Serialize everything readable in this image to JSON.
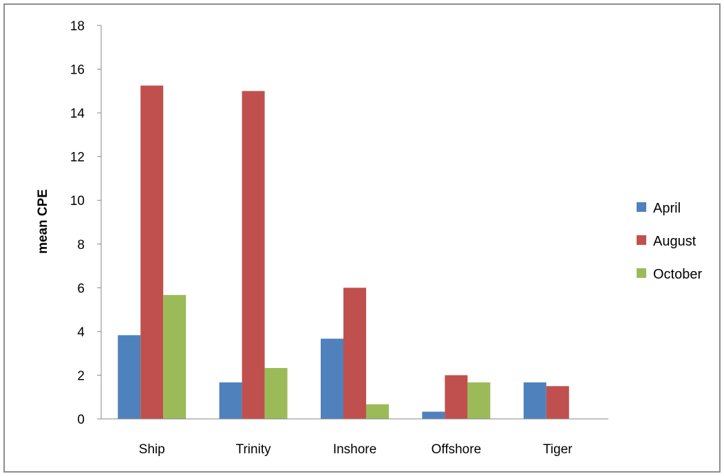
{
  "chart_data": {
    "type": "bar",
    "title": "",
    "xlabel": "",
    "ylabel": "mean CPE",
    "categories": [
      "Ship",
      "Trinity",
      "Inshore",
      "Offshore",
      "Tiger"
    ],
    "series": [
      {
        "name": "April",
        "color": "#4f81bd",
        "values": [
          3.83,
          1.67,
          3.67,
          0.33,
          1.67
        ]
      },
      {
        "name": "August",
        "color": "#c0504d",
        "values": [
          15.25,
          15.0,
          6.0,
          2.0,
          1.5
        ]
      },
      {
        "name": "October",
        "color": "#9bbb59",
        "values": [
          5.67,
          2.33,
          0.67,
          1.67,
          0
        ]
      }
    ],
    "ylim": [
      0,
      18
    ],
    "yticks": [
      0,
      2,
      4,
      6,
      8,
      10,
      12,
      14,
      16,
      18
    ],
    "ytick_labels": [
      "0",
      "2",
      "4",
      "6",
      "8",
      "10",
      "12",
      "14",
      "16",
      "18"
    ],
    "grid": false,
    "legend_position": "right"
  }
}
